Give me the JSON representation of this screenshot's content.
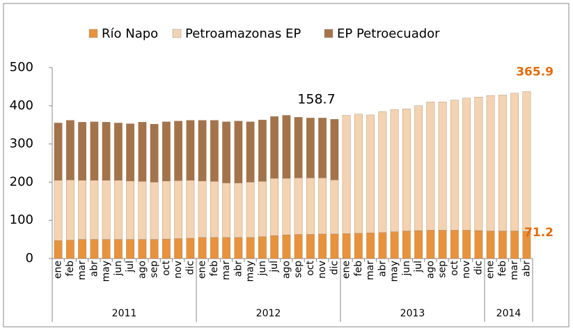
{
  "chart_data": {
    "type": "stacked_bar",
    "groups": [
      {
        "name": "2011",
        "categories": [
          "ene",
          "feb",
          "mar",
          "abr",
          "may",
          "jun",
          "jul",
          "ago",
          "sep",
          "oct",
          "nov",
          "dic"
        ]
      },
      {
        "name": "2012",
        "categories": [
          "ene",
          "feb",
          "mar",
          "abr",
          "may",
          "jun",
          "jul",
          "ago",
          "sep",
          "oct",
          "nov",
          "dic"
        ]
      },
      {
        "name": "2013",
        "categories": [
          "ene",
          "feb",
          "mar",
          "abr",
          "may",
          "jun",
          "jul",
          "ago",
          "sep",
          "oct",
          "nov",
          "dic"
        ]
      },
      {
        "name": "2014",
        "categories": [
          "ene",
          "feb",
          "mar",
          "abr"
        ]
      }
    ],
    "series": [
      {
        "name": "Río Napo",
        "color": "#e8923c",
        "values": [
          47,
          48,
          50,
          50,
          50,
          50,
          50,
          50,
          50,
          51,
          52,
          53,
          55,
          55,
          55,
          55,
          55,
          57,
          60,
          62,
          63,
          63,
          64,
          64,
          65,
          66,
          67,
          68,
          70,
          72,
          73,
          74,
          74,
          74,
          74,
          73,
          72,
          72,
          72,
          71.2
        ]
      },
      {
        "name": "Petroamazonas EP",
        "color": "#f3d3b1",
        "values": [
          158,
          158,
          155,
          155,
          155,
          155,
          153,
          152,
          150,
          152,
          152,
          152,
          148,
          147,
          143,
          143,
          145,
          145,
          150,
          148,
          148,
          148,
          147,
          142,
          310,
          312,
          309,
          317,
          320,
          320,
          327,
          336,
          336,
          341,
          346,
          350,
          355,
          356,
          361,
          365.9
        ]
      },
      {
        "name": "EP Petroecuador",
        "color": "#a5734a",
        "values": [
          150,
          156,
          152,
          153,
          152,
          150,
          150,
          155,
          152,
          155,
          156,
          157,
          159,
          160,
          160,
          162,
          158,
          161,
          162,
          165,
          159,
          157,
          157,
          158.7,
          0,
          0,
          0,
          0,
          0,
          0,
          0,
          0,
          0,
          0,
          0,
          0,
          0,
          0,
          0,
          0
        ]
      }
    ],
    "ylim": [
      0,
      500
    ],
    "yticks": [
      0,
      100,
      200,
      300,
      400,
      500
    ],
    "grid": false
  }
}
